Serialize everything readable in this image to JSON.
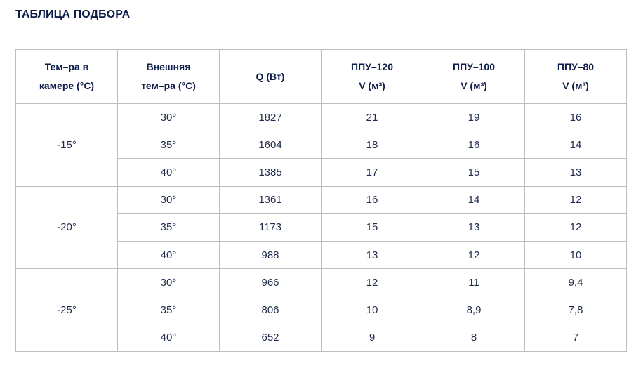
{
  "title": "ТАБЛИЦА ПОДБОРА",
  "headers": [
    [
      "Тем–ра в",
      "камере (°C)"
    ],
    [
      "Внешняя",
      "тем–ра (°C)"
    ],
    [
      "Q (Вт)"
    ],
    [
      "ППУ–120",
      "V (м³)"
    ],
    [
      "ППУ–100",
      "V (м³)"
    ],
    [
      "ППУ–80",
      "V (м³)"
    ]
  ],
  "groups": [
    {
      "chamber_temp": "-15°",
      "rows": [
        [
          "30°",
          "1827",
          "21",
          "19",
          "16"
        ],
        [
          "35°",
          "1604",
          "18",
          "16",
          "14"
        ],
        [
          "40°",
          "1385",
          "17",
          "15",
          "13"
        ]
      ]
    },
    {
      "chamber_temp": "-20°",
      "rows": [
        [
          "30°",
          "1361",
          "16",
          "14",
          "12"
        ],
        [
          "35°",
          "1173",
          "15",
          "13",
          "12"
        ],
        [
          "40°",
          "988",
          "13",
          "12",
          "10"
        ]
      ]
    },
    {
      "chamber_temp": "-25°",
      "rows": [
        [
          "30°",
          "966",
          "12",
          "11",
          "9,4"
        ],
        [
          "35°",
          "806",
          "10",
          "8,9",
          "7,8"
        ],
        [
          "40°",
          "652",
          "9",
          "8",
          "7"
        ]
      ]
    }
  ]
}
